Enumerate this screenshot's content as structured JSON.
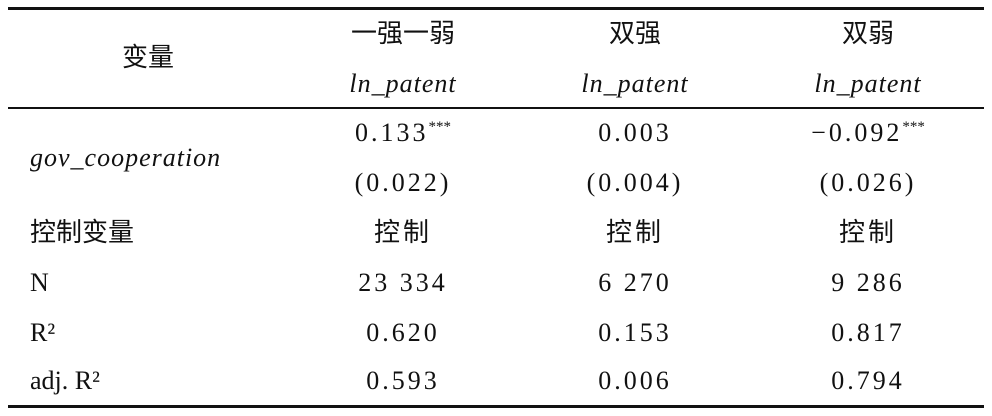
{
  "header": {
    "title": "变量",
    "columns": [
      {
        "group": "一强一弱",
        "dependent": "ln_patent"
      },
      {
        "group": "双强",
        "dependent": "ln_patent"
      },
      {
        "group": "双弱",
        "dependent": "ln_patent"
      }
    ]
  },
  "rows": [
    {
      "label": "gov_cooperation",
      "coefficients": [
        {
          "coef": "0.133",
          "stars": "***"
        },
        {
          "coef": "0.003"
        },
        {
          "coef": "−0.092",
          "stars": "***"
        }
      ],
      "std_errors": [
        "(0.022)",
        "(0.004)",
        "(0.026)"
      ]
    },
    {
      "label": "控制变量",
      "values": [
        "控制",
        "控制",
        "控制"
      ]
    },
    {
      "label": "N",
      "values": [
        "23 334",
        "6 270",
        "9 286"
      ]
    },
    {
      "label": "R²",
      "values": [
        "0.620",
        "0.153",
        "0.817"
      ]
    },
    {
      "label": "adj. R²",
      "values": [
        "0.593",
        "0.006",
        "0.794"
      ]
    }
  ]
}
